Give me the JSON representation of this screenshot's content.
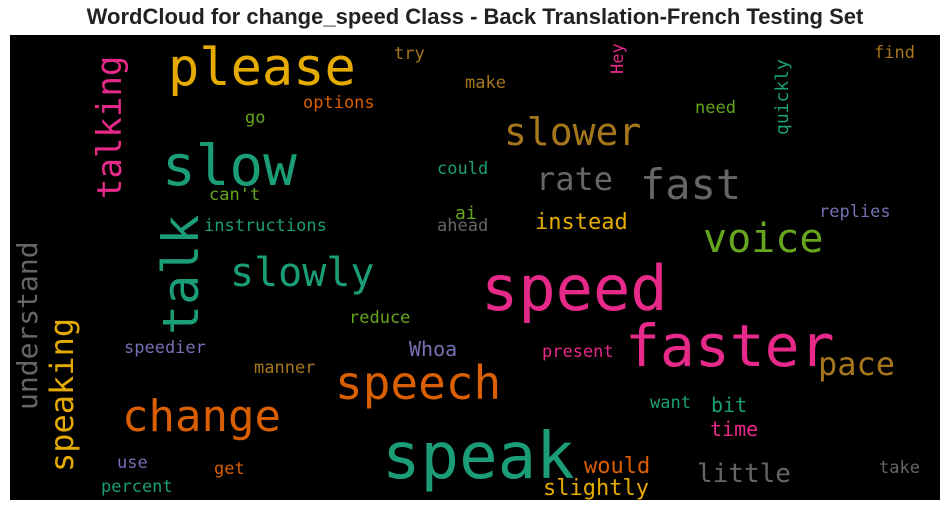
{
  "chart_data": {
    "type": "wordcloud",
    "title": "WordCloud for change_speed Class - Back Translation-French Testing Set",
    "background": "#000000",
    "words": [
      {
        "text": "speak",
        "size": 64,
        "color": "#1b9e77"
      },
      {
        "text": "speed",
        "size": 62,
        "color": "#e7298a"
      },
      {
        "text": "faster",
        "size": 58,
        "color": "#e7298a"
      },
      {
        "text": "slow",
        "size": 56,
        "color": "#1b9e77"
      },
      {
        "text": "please",
        "size": 52,
        "color": "#e6ab02"
      },
      {
        "text": "talk",
        "size": 50,
        "color": "#1b9e77"
      },
      {
        "text": "speech",
        "size": 46,
        "color": "#d95f02"
      },
      {
        "text": "change",
        "size": 44,
        "color": "#d95f02"
      },
      {
        "text": "fast",
        "size": 42,
        "color": "#666666"
      },
      {
        "text": "slowly",
        "size": 40,
        "color": "#1b9e77"
      },
      {
        "text": "voice",
        "size": 40,
        "color": "#66a61e"
      },
      {
        "text": "slower",
        "size": 38,
        "color": "#a6761d"
      },
      {
        "text": "talking",
        "size": 34,
        "color": "#e7298a"
      },
      {
        "text": "speaking",
        "size": 32,
        "color": "#e6ab02"
      },
      {
        "text": "rate",
        "size": 32,
        "color": "#666666"
      },
      {
        "text": "pace",
        "size": 32,
        "color": "#a6761d"
      },
      {
        "text": "understand",
        "size": 28,
        "color": "#666666"
      },
      {
        "text": "little",
        "size": 26,
        "color": "#666666"
      },
      {
        "text": "instead",
        "size": 22,
        "color": "#e6ab02"
      },
      {
        "text": "slightly",
        "size": 22,
        "color": "#e6ab02"
      },
      {
        "text": "would",
        "size": 22,
        "color": "#d95f02"
      },
      {
        "text": "Whoa",
        "size": 20,
        "color": "#7570b3"
      },
      {
        "text": "bit",
        "size": 20,
        "color": "#1b9e77"
      },
      {
        "text": "time",
        "size": 20,
        "color": "#e7298a"
      },
      {
        "text": "ai",
        "size": 18,
        "color": "#66a61e"
      },
      {
        "text": "quickly",
        "size": 18,
        "color": "#1b9e77"
      },
      {
        "text": "try",
        "size": 17,
        "color": "#a6761d"
      },
      {
        "text": "find",
        "size": 17,
        "color": "#a6761d"
      },
      {
        "text": "Hey",
        "size": 17,
        "color": "#e7298a"
      },
      {
        "text": "make",
        "size": 17,
        "color": "#a6761d"
      },
      {
        "text": "options",
        "size": 17,
        "color": "#d95f02"
      },
      {
        "text": "need",
        "size": 17,
        "color": "#66a61e"
      },
      {
        "text": "go",
        "size": 17,
        "color": "#66a61e"
      },
      {
        "text": "could",
        "size": 17,
        "color": "#1b9e77"
      },
      {
        "text": "can't",
        "size": 17,
        "color": "#66a61e"
      },
      {
        "text": "instructions",
        "size": 17,
        "color": "#1b9e77"
      },
      {
        "text": "ahead",
        "size": 17,
        "color": "#666666"
      },
      {
        "text": "replies",
        "size": 17,
        "color": "#7570b3"
      },
      {
        "text": "reduce",
        "size": 17,
        "color": "#66a61e"
      },
      {
        "text": "speedier",
        "size": 17,
        "color": "#7570b3"
      },
      {
        "text": "present",
        "size": 17,
        "color": "#e7298a"
      },
      {
        "text": "manner",
        "size": 17,
        "color": "#a6761d"
      },
      {
        "text": "want",
        "size": 17,
        "color": "#1b9e77"
      },
      {
        "text": "use",
        "size": 17,
        "color": "#7570b3"
      },
      {
        "text": "get",
        "size": 17,
        "color": "#d95f02"
      },
      {
        "text": "percent",
        "size": 17,
        "color": "#1b9e77"
      },
      {
        "text": "take",
        "size": 17,
        "color": "#666666"
      }
    ]
  }
}
